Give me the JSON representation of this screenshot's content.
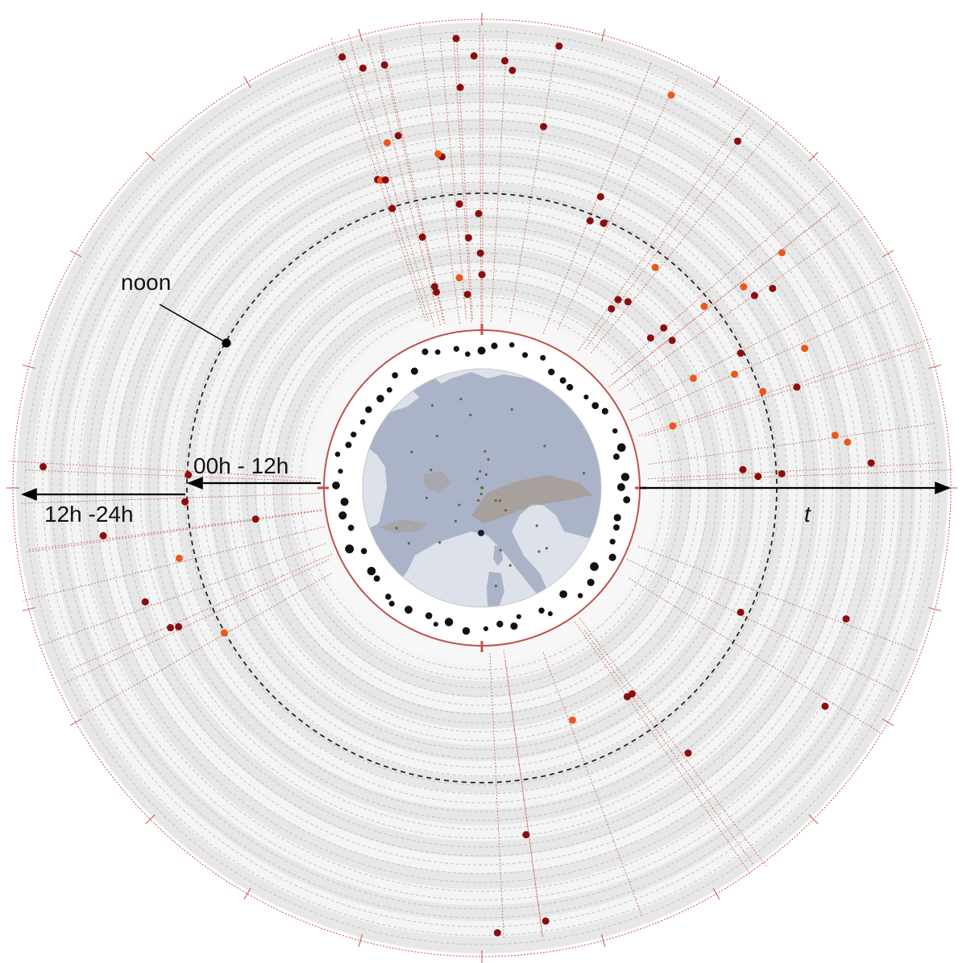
{
  "labels": {
    "noon": "noon",
    "am": "00h - 12h",
    "pm": "12h -24h",
    "time_axis": "t"
  },
  "colors": {
    "band_dark": "#e7e7e7",
    "band_light": "#f4f4f4",
    "dashed_ring": "#bdbdbd",
    "tick_red": "#c0504d",
    "ray_red": "#cf7b6f",
    "event_dark": "#8b0e0e",
    "event_orange": "#e8591a",
    "marker_black": "#111111",
    "map_water": "#d4d9e3",
    "map_land": "#aab3c8",
    "map_relief": "#a69a8e",
    "noon_ring": "#222222"
  },
  "diagram": {
    "n_bands": 9,
    "n_rays": 50,
    "n_events": 78,
    "n_station_markers": 60
  }
}
